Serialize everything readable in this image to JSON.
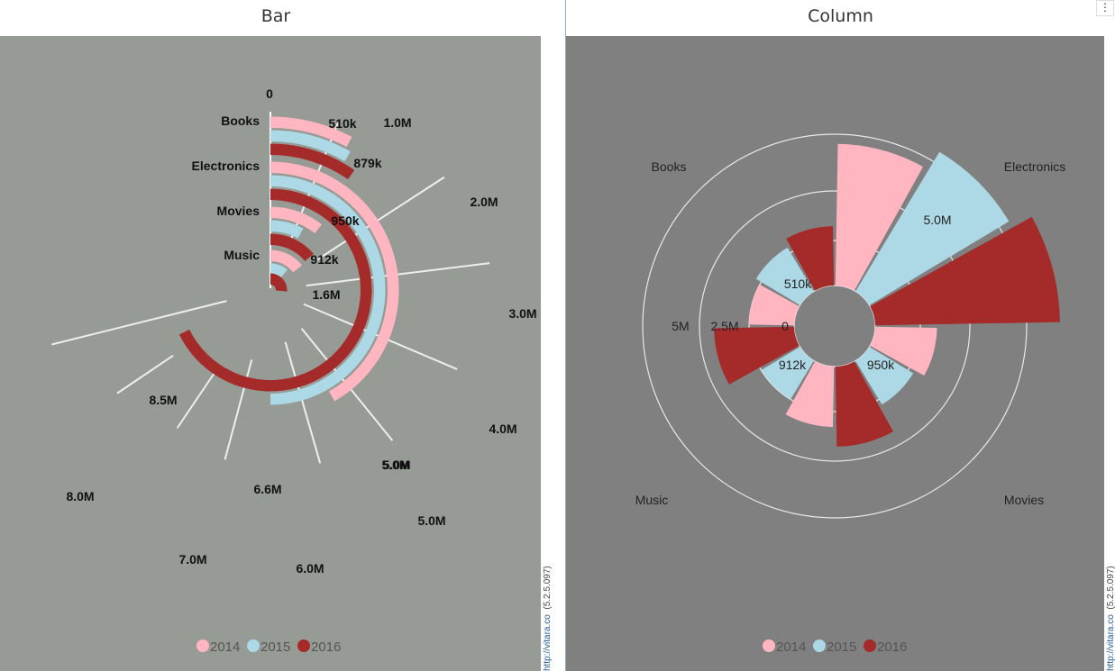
{
  "panels": [
    {
      "title": "Bar",
      "credit_link": "http://vitara.co",
      "credit_version": "(5.2.5.097)",
      "plot_bg": "#979b95"
    },
    {
      "title": "Column",
      "credit_link": "http://vitara.co",
      "credit_version": "(5.2.5.097)",
      "plot_bg": "#808080"
    }
  ],
  "menu_icon": "vertical-dots-icon",
  "colors": {
    "2014": "#ffb6c1",
    "2015": "#add8e6",
    "2016": "#a52a2a"
  },
  "chart_data": [
    {
      "type": "bar",
      "title": "Bar",
      "polar": true,
      "categories": [
        "Books",
        "Electronics",
        "Movies",
        "Music"
      ],
      "series": [
        {
          "name": "2014",
          "values": [
            510000,
            5000000,
            950000,
            912000
          ]
        },
        {
          "name": "2015",
          "values": [
            650000,
            6600000,
            650000,
            500000
          ]
        },
        {
          "name": "2016",
          "values": [
            879000,
            8500000,
            1600000,
            1600000
          ]
        }
      ],
      "ticks": [
        "0",
        "1.0M",
        "2.0M",
        "3.0M",
        "4.0M",
        "5.0M",
        "5.0M",
        "6.0M",
        "7.0M",
        "8.0M"
      ],
      "data_labels": [
        {
          "text": "510k"
        },
        {
          "text": "879k"
        },
        {
          "text": "950k"
        },
        {
          "text": "912k"
        },
        {
          "text": "1.6M"
        },
        {
          "text": "5.0M"
        },
        {
          "text": "6.6M"
        },
        {
          "text": "8.5M"
        }
      ],
      "legend": [
        "2014",
        "2015",
        "2016"
      ],
      "legend_position": "bottom"
    },
    {
      "type": "bar",
      "title": "Column",
      "polar": true,
      "categories": [
        "Books",
        "Electronics",
        "Movies",
        "Music"
      ],
      "series": [
        {
          "name": "2014",
          "values": [
            510000,
            5000000,
            950000,
            912000
          ]
        },
        {
          "name": "2015",
          "values": [
            650000,
            6600000,
            650000,
            500000
          ]
        },
        {
          "name": "2016",
          "values": [
            879000,
            8500000,
            1600000,
            1600000
          ]
        }
      ],
      "rings": [
        "2.5M",
        "5M"
      ],
      "ring_zero": "0",
      "data_labels": [
        {
          "text": "510k"
        },
        {
          "text": "5.0M"
        },
        {
          "text": "950k"
        },
        {
          "text": "912k"
        }
      ],
      "legend": [
        "2014",
        "2015",
        "2016"
      ],
      "legend_position": "bottom"
    }
  ]
}
